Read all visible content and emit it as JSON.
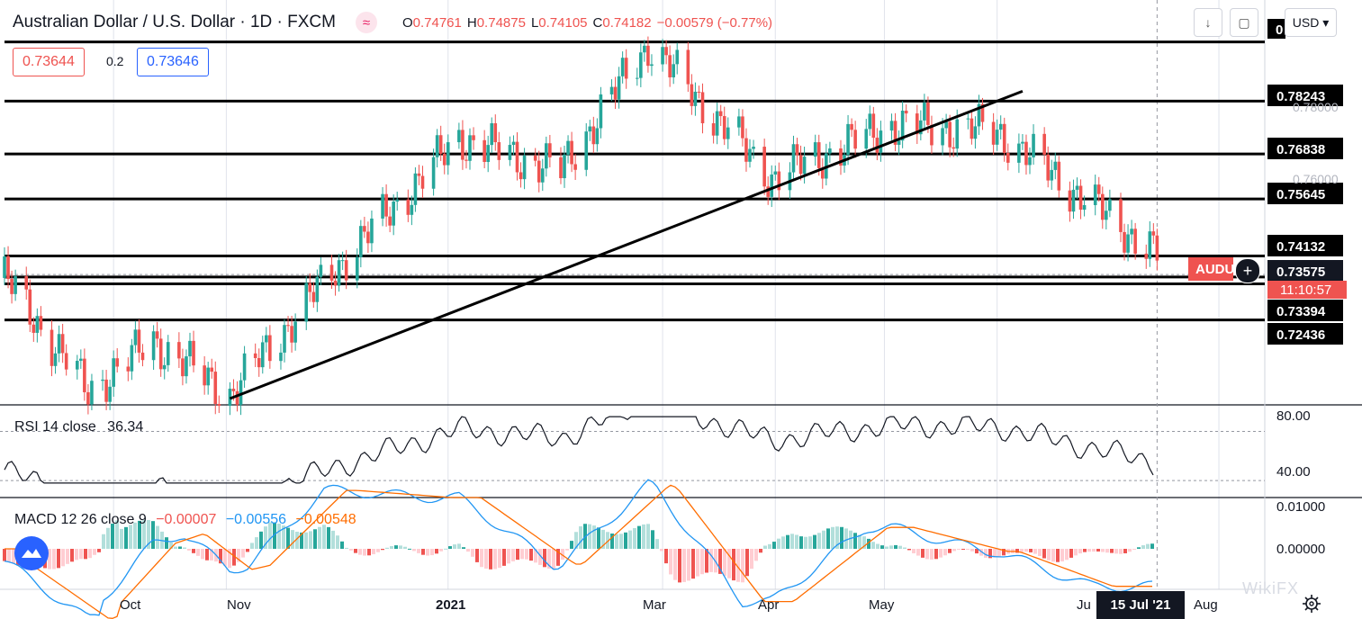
{
  "header": {
    "title": "Australian Dollar / U.S. Dollar · 1D · FXCM",
    "indicator_glyph": "≈",
    "ohlc": [
      {
        "key": "O",
        "value": "0.74761"
      },
      {
        "key": "H",
        "value": "0.74875"
      },
      {
        "key": "L",
        "value": "0.74105"
      },
      {
        "key": "C",
        "value": "0.74182"
      },
      {
        "key": "",
        "value": "−0.00579 (−0.77%)"
      }
    ]
  },
  "trade": {
    "sell": "0.73644",
    "spread": "0.2",
    "buy": "0.73646"
  },
  "toolbar": {
    "currency": "USD ▾",
    "download_icon": "download-arrow-icon",
    "fullscreen_icon": "fullscreen-icon"
  },
  "price_axis": {
    "labels": [
      "0.78243",
      "0.76838",
      "0.75645",
      "0.74132",
      "0.73575",
      "0.73394",
      "0.72436"
    ],
    "faint_labels": [
      "0.78000",
      "0.76000"
    ],
    "top_label": "0",
    "countdown": "11:10:57",
    "symbol_tag": "AUDUSD"
  },
  "rsi": {
    "legend": "RSI 14 close",
    "value": "36.34",
    "axis": [
      "80.00",
      "40.00"
    ]
  },
  "macd": {
    "legend": "MACD 12 26 close 9",
    "values": [
      "−0.00007",
      "−0.00556",
      "−0.00548"
    ],
    "axis": [
      "0.01000",
      "0.00000"
    ]
  },
  "time_axis": {
    "labels": [
      "Oct",
      "Nov",
      "2021",
      "Mar",
      "Apr",
      "May",
      "Ju",
      "Aug"
    ],
    "crosshair_date": "15 Jul '21"
  },
  "watermark": "WikiFX",
  "colors": {
    "up": "#26a69a",
    "down": "#ef5350",
    "macd": "#2196f3",
    "signal": "#ff6d00",
    "rsi": "#131722"
  },
  "chart_data": {
    "type": "candlestick",
    "title": "Australian Dollar / U.S. Dollar · 1D · FXCM",
    "x_range": [
      "2020-09-01",
      "2021-07-31"
    ],
    "y_range": [
      0.7035,
      0.7985
    ],
    "horizontal_levels": [
      0.7981,
      0.78243,
      0.76838,
      0.75645,
      0.74132,
      0.73575,
      0.73394,
      0.72436
    ],
    "trendline": {
      "from": [
        "2020-11-02",
        0.7035
      ],
      "to": [
        "2021-06-08",
        0.7755
      ]
    },
    "close_series_monthly": {
      "dates": [
        "2020-09-01",
        "2020-09-24",
        "2020-10-12",
        "2020-11-02",
        "2020-12-01",
        "2021-01-04",
        "2021-02-01",
        "2021-02-25",
        "2021-03-31",
        "2021-05-03",
        "2021-06-01",
        "2021-07-15"
      ],
      "close": [
        0.7355,
        0.7055,
        0.7188,
        0.7045,
        0.738,
        0.7725,
        0.764,
        0.7975,
        0.762,
        0.776,
        0.7745,
        0.7418
      ]
    },
    "rsi": {
      "name": "RSI 14 close",
      "last": 36.34,
      "levels": [
        70,
        30
      ]
    },
    "macd": {
      "name": "MACD 12 26 close 9",
      "histogram": -7e-05,
      "macd": -0.00556,
      "signal": -0.00548
    }
  }
}
